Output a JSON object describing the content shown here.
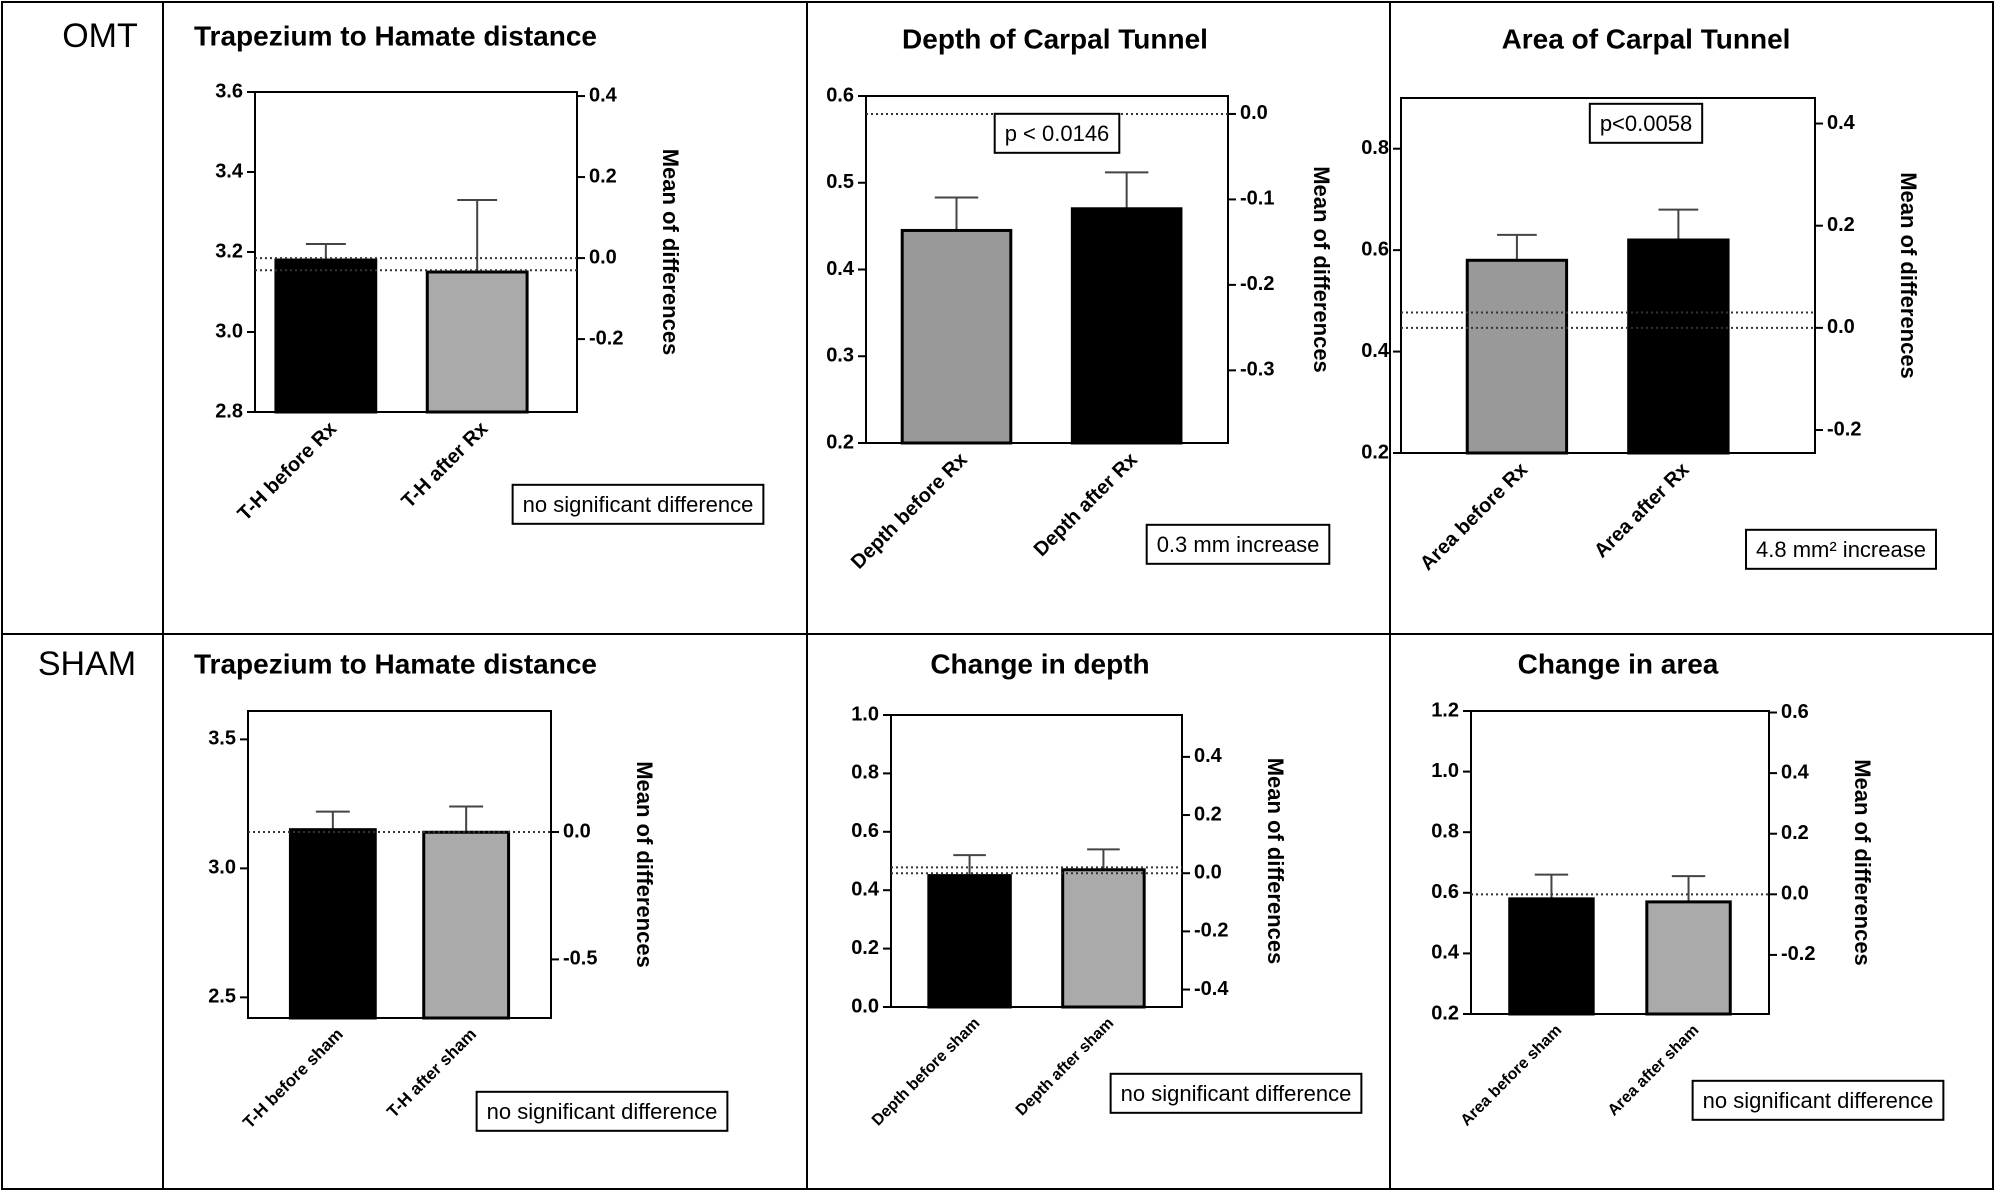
{
  "rows": [
    "OMT",
    "SHAM"
  ],
  "chart_data": [
    {
      "type": "bar",
      "title": "Trapezium to Hamate distance",
      "categories": [
        "T-H before Rx",
        "T-H after Rx"
      ],
      "values": [
        3.18,
        3.15
      ],
      "errors": [
        0.04,
        0.18
      ],
      "colors": [
        "#000000",
        "#aaaaaa"
      ],
      "ylim": [
        2.8,
        3.6
      ],
      "yticks": [
        2.8,
        {
          "value": 3,
          "label": "3.0"
        },
        3.2,
        3.4,
        3.6
      ],
      "y2lim": [
        -0.38,
        0.41
      ],
      "y2ticks": [
        -0.2,
        {
          "value": 0,
          "label": "0.0"
        },
        0.2,
        0.4
      ],
      "y2label": "Mean of differences",
      "reference_lines": [
        0,
        -0.03
      ],
      "annotations": [
        "no significant difference"
      ]
    },
    {
      "type": "bar",
      "title": "Depth of Carpal Tunnel",
      "categories": [
        "Depth before Rx",
        "Depth after Rx"
      ],
      "values": [
        0.445,
        0.47
      ],
      "errors": [
        0.038,
        0.042
      ],
      "colors": [
        "#999999",
        "#000000"
      ],
      "ylim": [
        0.2,
        0.6
      ],
      "yticks": [
        0.2,
        0.3,
        0.4,
        0.5,
        0.6
      ],
      "y2lim": [
        -0.385,
        0.021
      ],
      "y2ticks": [
        -0.3,
        -0.2,
        -0.1,
        {
          "value": 0,
          "label": "0.0"
        }
      ],
      "y2label": "Mean of differences",
      "reference_lines": [
        0
      ],
      "annotations": [
        "p < 0.0146",
        "0.3 mm increase"
      ]
    },
    {
      "type": "bar",
      "title": "Area of Carpal Tunnel",
      "categories": [
        "Area before Rx",
        "Area after Rx"
      ],
      "values": [
        0.58,
        0.62
      ],
      "errors": [
        0.05,
        0.06
      ],
      "colors": [
        "#999999",
        "#000000"
      ],
      "ylim": [
        0.2,
        0.9
      ],
      "yticks": [
        0.2,
        0.4,
        0.6,
        0.8
      ],
      "y2lim": [
        -0.245,
        0.45
      ],
      "y2ticks": [
        -0.2,
        {
          "value": 0,
          "label": "0.0"
        },
        0.2,
        0.4
      ],
      "y2label": "Mean of differences",
      "reference_lines": [
        0.03,
        0
      ],
      "annotations": [
        "p<0.0058",
        "4.8 mm² increase"
      ]
    },
    {
      "type": "bar",
      "title": "Trapezium to Hamate distance",
      "categories": [
        "T-H before sham",
        "T-H after sham"
      ],
      "values": [
        3.15,
        3.14
      ],
      "errors": [
        0.07,
        0.1
      ],
      "colors": [
        "#000000",
        "#aaaaaa"
      ],
      "ylim": [
        2.42,
        3.61
      ],
      "yticks": [
        2.5,
        {
          "value": 3,
          "label": "3.0"
        },
        3.5
      ],
      "y2lim": [
        -0.73,
        0.475
      ],
      "y2ticks": [
        -0.5,
        {
          "value": 0,
          "label": "0.0"
        }
      ],
      "y2label": "Mean of differences",
      "reference_lines": [
        0
      ],
      "annotations": [
        "no significant difference"
      ]
    },
    {
      "type": "bar",
      "title": "Change in depth",
      "categories": [
        "Depth before sham",
        "Depth after sham"
      ],
      "values": [
        0.45,
        0.47
      ],
      "errors": [
        0.07,
        0.07
      ],
      "colors": [
        "#000000",
        "#aaaaaa"
      ],
      "ylim": [
        0,
        1
      ],
      "yticks": [
        {
          "value": 0,
          "label": "0.0"
        },
        0.2,
        0.4,
        0.6,
        0.8,
        {
          "value": 1,
          "label": "1.0"
        }
      ],
      "y2lim": [
        -0.46,
        0.544
      ],
      "y2ticks": [
        -0.4,
        -0.2,
        {
          "value": 0,
          "label": "0.0"
        },
        0.2,
        0.4
      ],
      "y2label": "Mean of differences",
      "reference_lines": [
        0,
        0.02
      ],
      "annotations": [
        "no significant difference"
      ]
    },
    {
      "type": "bar",
      "title": "Change in area",
      "categories": [
        "Area before sham",
        "Area after sham"
      ],
      "values": [
        0.58,
        0.57
      ],
      "errors": [
        0.08,
        0.085
      ],
      "colors": [
        "#000000",
        "#aaaaaa"
      ],
      "ylim": [
        0.2,
        1.2
      ],
      "yticks": [
        0.2,
        0.4,
        0.6,
        0.8,
        {
          "value": 1,
          "label": "1.0"
        },
        1.2
      ],
      "y2lim": [
        -0.395,
        0.605
      ],
      "y2ticks": [
        -0.2,
        {
          "value": 0,
          "label": "0.0"
        },
        0.2,
        0.4,
        0.6
      ],
      "y2label": "Mean of differences",
      "reference_lines": [
        0
      ],
      "annotations": [
        "no significant difference"
      ]
    }
  ]
}
